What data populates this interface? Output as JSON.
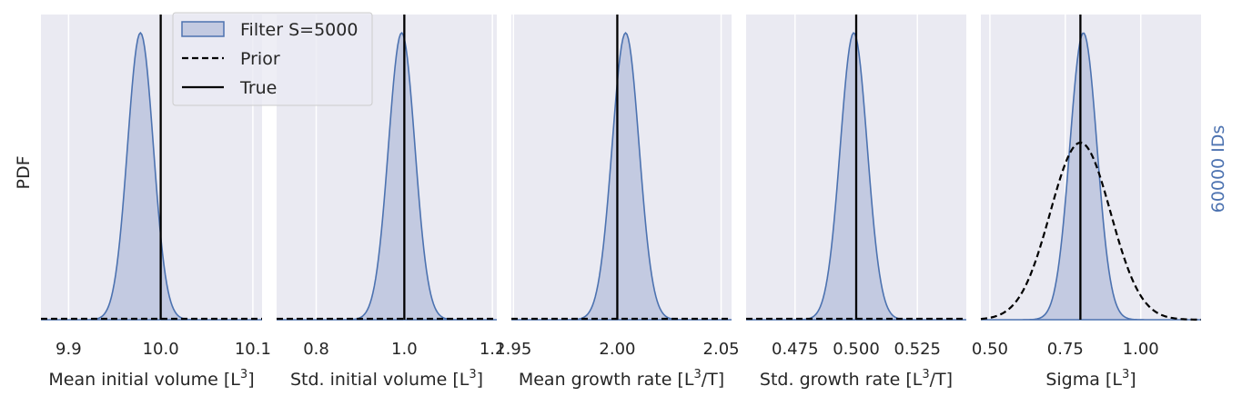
{
  "figure": {
    "ylabel": "PDF",
    "side_label": "60000 IDs"
  },
  "legend": {
    "items": [
      {
        "label": "Filter S=5000",
        "kind": "filled"
      },
      {
        "label": "Prior",
        "kind": "dashed"
      },
      {
        "label": "True",
        "kind": "solid"
      }
    ]
  },
  "colors": {
    "panel_bg": "#eaeaf2",
    "grid": "#ffffff",
    "filter_line": "#4c72b0",
    "filter_fill": "#c3cae1",
    "prior": "#000000",
    "true": "#000000",
    "side_label": "#4c72b0"
  },
  "chart_data": [
    {
      "type": "area",
      "xlabel_main": "Mean initial volume [L",
      "xlabel_sup": "3",
      "xlabel_tail": "]",
      "xlim": [
        9.87,
        10.11
      ],
      "xticks": [
        9.9,
        10.0,
        10.1
      ],
      "xtick_labels": [
        "9.9",
        "10.0",
        "10.1"
      ],
      "true_value": 10.0,
      "filter": {
        "mean": 9.978,
        "sd": 0.014,
        "peak": 0.94
      },
      "prior": null
    },
    {
      "type": "area",
      "xlabel_main": "Std. initial volume [L",
      "xlabel_sup": "3",
      "xlabel_tail": "]",
      "xlim": [
        0.71,
        1.21
      ],
      "xticks": [
        0.8,
        1.0,
        1.2
      ],
      "xtick_labels": [
        "0.8",
        "1.0",
        "1.2"
      ],
      "true_value": 1.0,
      "filter": {
        "mean": 0.994,
        "sd": 0.03,
        "peak": 0.94
      },
      "prior": null
    },
    {
      "type": "area",
      "xlabel_main": "Mean growth rate [L",
      "xlabel_sup": "3",
      "xlabel_tail": "/T]",
      "xlim": [
        1.949,
        2.055
      ],
      "xticks": [
        1.95,
        2.0,
        2.05
      ],
      "xtick_labels": [
        "1.95",
        "2.00",
        "2.05"
      ],
      "true_value": 2.0,
      "filter": {
        "mean": 2.004,
        "sd": 0.0065,
        "peak": 0.94
      },
      "prior": null
    },
    {
      "type": "area",
      "xlabel_main": "Std. growth rate [L",
      "xlabel_sup": "3",
      "xlabel_tail": "/T]",
      "xlim": [
        0.455,
        0.545
      ],
      "xticks": [
        0.475,
        0.5,
        0.525
      ],
      "xtick_labels": [
        "0.475",
        "0.500",
        "0.525"
      ],
      "true_value": 0.5,
      "filter": {
        "mean": 0.499,
        "sd": 0.0055,
        "peak": 0.94
      },
      "prior": null
    },
    {
      "type": "area",
      "xlabel_main": "Sigma [L",
      "xlabel_sup": "3",
      "xlabel_tail": "]",
      "xlim": [
        0.47,
        1.2
      ],
      "xticks": [
        0.5,
        0.75,
        1.0
      ],
      "xtick_labels": [
        "0.50",
        "0.75",
        "1.00"
      ],
      "true_value": 0.8,
      "filter": {
        "mean": 0.81,
        "sd": 0.045,
        "peak": 0.94
      },
      "prior": {
        "mean": 0.8,
        "sd": 0.1,
        "peak": 0.58
      }
    }
  ]
}
